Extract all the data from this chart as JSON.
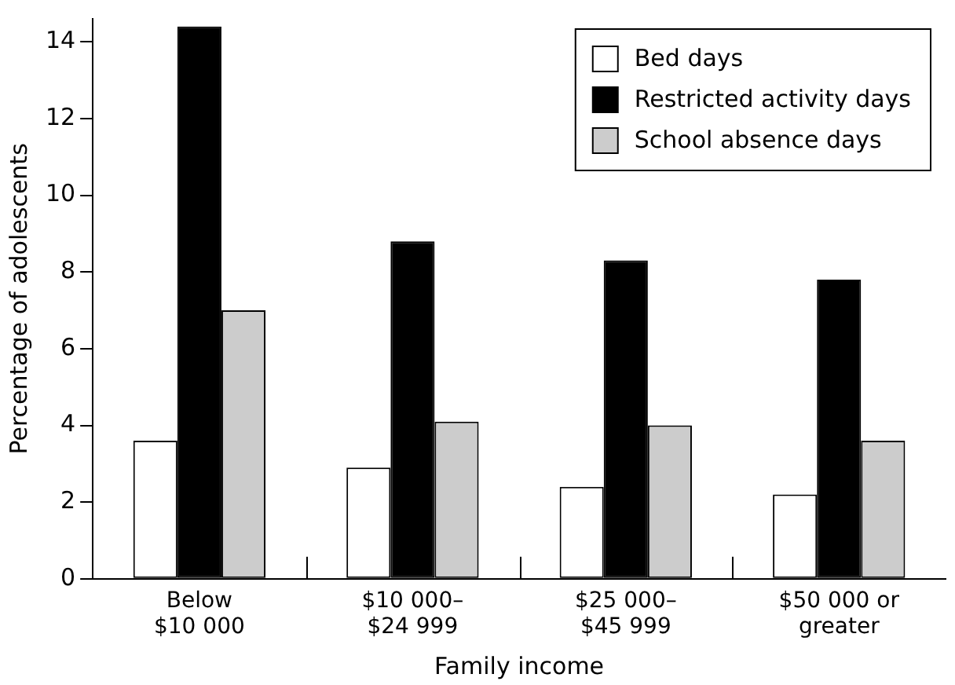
{
  "chart_data": {
    "type": "bar",
    "xlabel": "Family income",
    "ylabel": "Percentage of adolescents",
    "categories": [
      "Below\n$10 000",
      "$10 000–\n$24 999",
      "$25 000–\n$45 999",
      "$50 000 or\ngreater"
    ],
    "series": [
      {
        "name": "Bed days",
        "color": "#ffffff",
        "values": [
          3.6,
          2.9,
          2.4,
          2.2
        ]
      },
      {
        "name": "Restricted activity days",
        "color": "#000000",
        "values": [
          14.4,
          8.8,
          8.3,
          7.8
        ]
      },
      {
        "name": "School absence days",
        "color": "#cccccc",
        "values": [
          7.0,
          4.1,
          4.0,
          3.6
        ]
      }
    ],
    "ylim": [
      0,
      14.6
    ],
    "yticks": [
      0,
      2,
      4,
      6,
      8,
      10,
      12,
      14
    ],
    "grid": false,
    "legend": "top right"
  }
}
